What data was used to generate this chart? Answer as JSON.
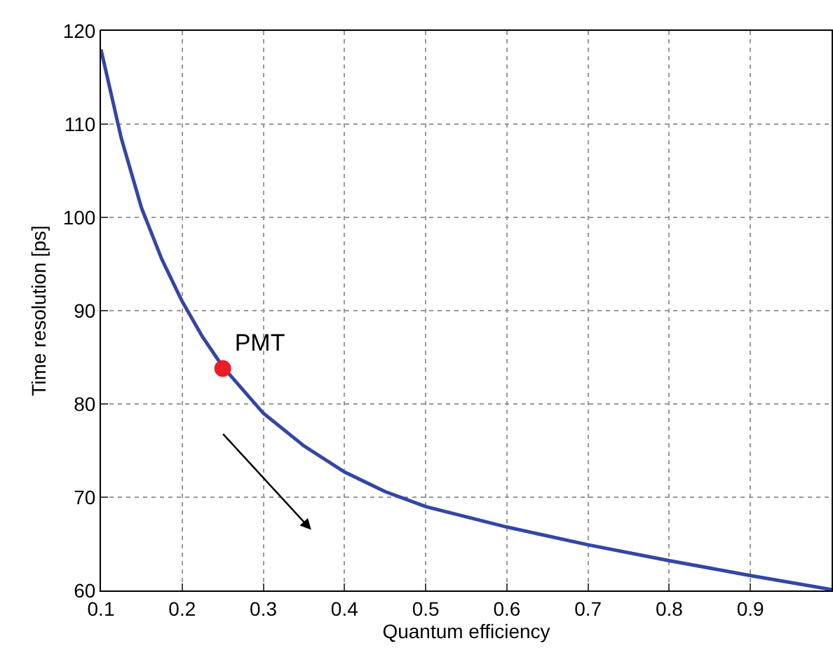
{
  "chart_data": {
    "type": "line",
    "xlabel": "Quantum efficiency",
    "ylabel": "Time resolution [ps]",
    "xlim": [
      0.1,
      1.0
    ],
    "xticks": [
      0.1,
      0.2,
      0.3,
      0.4,
      0.5,
      0.6,
      0.7,
      0.8,
      0.9
    ],
    "ylim": [
      60,
      120
    ],
    "yticks": [
      60,
      70,
      80,
      90,
      100,
      110,
      120
    ],
    "grid": true,
    "series": [
      {
        "color": "#3346a6",
        "line_style": "solid",
        "x": [
          0.1,
          0.125,
          0.15,
          0.175,
          0.2,
          0.225,
          0.25,
          0.3,
          0.35,
          0.4,
          0.45,
          0.5,
          0.6,
          0.7,
          0.8,
          0.9,
          1.0
        ],
        "values": [
          118,
          108.5,
          101,
          95.5,
          91,
          87.2,
          84,
          79,
          75.5,
          72.7,
          70.6,
          69,
          66.8,
          64.9,
          63.2,
          61.6,
          60.1
        ]
      },
      {
        "type": "scatter",
        "name": "PMT",
        "color": "#ee1c24",
        "marker": "circle",
        "x": [
          0.25
        ],
        "values": [
          83.8
        ]
      }
    ]
  }
}
